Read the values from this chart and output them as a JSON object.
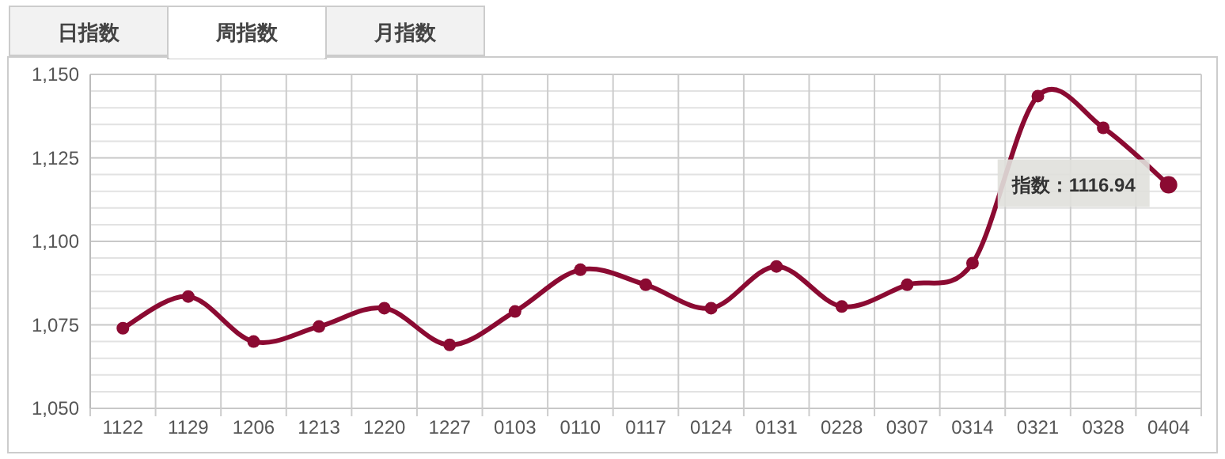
{
  "chart_data": {
    "type": "line",
    "categories": [
      "1122",
      "1129",
      "1206",
      "1213",
      "1220",
      "1227",
      "0103",
      "0110",
      "0117",
      "0124",
      "0131",
      "0228",
      "0307",
      "0314",
      "0321",
      "0328",
      "0404"
    ],
    "series": [
      {
        "color": "#8b0a32",
        "values": [
          1074,
          1083.5,
          1070,
          1074.5,
          1080,
          1069,
          1079,
          1091.5,
          1087,
          1080,
          1092.5,
          1080.5,
          1087,
          1093.5,
          1143.5,
          1134,
          1116.94
        ]
      }
    ],
    "ylim": [
      1050,
      1150
    ],
    "yticks": [
      {
        "value": 1050,
        "label": "1,050"
      },
      {
        "value": 1055,
        "label": null
      },
      {
        "value": 1060,
        "label": null
      },
      {
        "value": 1065,
        "label": null
      },
      {
        "value": 1070,
        "label": null
      },
      {
        "value": 1075,
        "label": "1,075"
      },
      {
        "value": 1080,
        "label": null
      },
      {
        "value": 1085,
        "label": null
      },
      {
        "value": 1090,
        "label": null
      },
      {
        "value": 1095,
        "label": null
      },
      {
        "value": 1100,
        "label": "1,100"
      },
      {
        "value": 1105,
        "label": null
      },
      {
        "value": 1110,
        "label": null
      },
      {
        "value": 1115,
        "label": null
      },
      {
        "value": 1120,
        "label": null
      },
      {
        "value": 1125,
        "label": "1,125"
      },
      {
        "value": 1130,
        "label": null
      },
      {
        "value": 1135,
        "label": null
      },
      {
        "value": 1140,
        "label": null
      },
      {
        "value": 1145,
        "label": null
      },
      {
        "value": 1150,
        "label": "1,150"
      }
    ],
    "grid": true,
    "marker": "circle",
    "line_style": "solid",
    "annotations": [
      "日指数",
      "周指数",
      "月指数",
      {
        "text": "指数：1116.94",
        "x": "0404",
        "y": 1116.94
      }
    ]
  }
}
